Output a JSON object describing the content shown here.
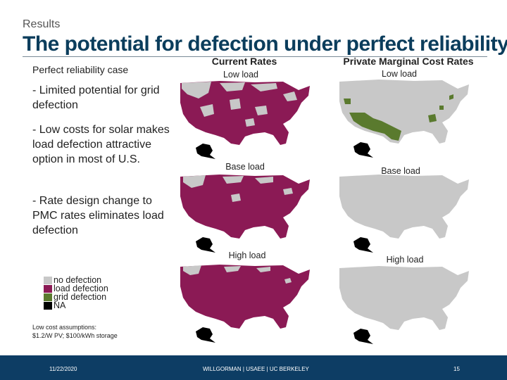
{
  "header": {
    "section": "Results",
    "title": "The potential for defection under perfect reliability"
  },
  "left": {
    "case_label": "Perfect reliability case",
    "bullets": [
      "- Limited potential for grid defection",
      "- Low costs for solar makes load defection attractive option in most of U.S.",
      "- Rate design change to PMC rates eliminates load defection"
    ],
    "legend": [
      {
        "label": "no defection",
        "color": "#c8c8c8"
      },
      {
        "label": "load defection",
        "color": "#8b1a55"
      },
      {
        "label": "grid defection",
        "color": "#5a7a2e"
      },
      {
        "label": "NA",
        "color": "#000000"
      }
    ],
    "note_line1": "Low cost assumptions:",
    "note_line2": "$1.2/W PV; $100/kWh storage"
  },
  "columns": {
    "current": "Current Rates",
    "pmc": "Private Marginal Cost Rates"
  },
  "maps": {
    "current": [
      "Low load",
      "Base load",
      "High load"
    ],
    "pmc": [
      "Low load",
      "Base load",
      "High load"
    ]
  },
  "footer": {
    "date": "11/22/2020",
    "center": "WILLGORMAN | USAEE | UC BERKELEY",
    "page": "15"
  },
  "colors": {
    "no_defection": "#c8c8c8",
    "load_defection": "#8b1a55",
    "grid_defection": "#5a7a2e",
    "na": "#000000",
    "footer_bg": "#0d3d64",
    "title": "#0b3d5c"
  }
}
